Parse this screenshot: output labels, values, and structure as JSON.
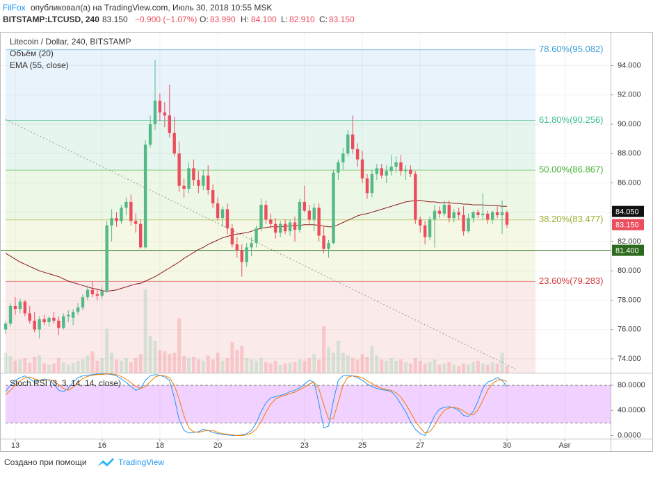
{
  "header": {
    "author": "FilFox",
    "published": "опубликовал(а) на TradingView.com, Июль 30, 2018 10:55 MSK",
    "symbol": "BITSTAMP:LTCUSD, 240",
    "last": "83.150",
    "change": "−0.900 (−1.07%)",
    "o_label": "O:",
    "o": "83.990",
    "h_label": "H:",
    "h": "84.100",
    "l_label": "L:",
    "l": "82.910",
    "c_label": "C:",
    "c": "83.150"
  },
  "footer": {
    "text": "Создано при помощи",
    "brand": "TradingView"
  },
  "chart_data": {
    "type": "candlestick",
    "title": "Litecoin / Dollar, 240, BITSTAMP",
    "volume_label": "Объём (20)",
    "ema_label": "EMA (55, close)",
    "up_color": "#53b987",
    "down_color": "#eb4d5c",
    "ema_color": "#8b1a1a",
    "grid": true,
    "ylim": [
      73.05,
      96.2
    ],
    "yticks": [
      {
        "value": 74,
        "label": "74.000"
      },
      {
        "value": 76,
        "label": "76.000"
      },
      {
        "value": 78,
        "label": "78.000"
      },
      {
        "value": 80,
        "label": "80.000"
      },
      {
        "value": 82,
        "label": "82.000"
      },
      {
        "value": 84,
        "label": "84.000"
      },
      {
        "value": 86,
        "label": "86.000"
      },
      {
        "value": 88,
        "label": "88.000"
      },
      {
        "value": 90,
        "label": "90.000"
      },
      {
        "value": 92,
        "label": "92.000"
      },
      {
        "value": 94,
        "label": "94.000"
      }
    ],
    "xlim": [
      -1.17,
      125.5
    ],
    "xticks": [
      {
        "value": 2,
        "label": "13"
      },
      {
        "value": 20,
        "label": "16"
      },
      {
        "value": 32,
        "label": "18"
      },
      {
        "value": 44,
        "label": "20"
      },
      {
        "value": 62,
        "label": "23"
      },
      {
        "value": 74,
        "label": "25"
      },
      {
        "value": 86,
        "label": "27"
      },
      {
        "value": 104,
        "label": "30"
      },
      {
        "value": 116,
        "label": "Авг"
      }
    ],
    "fib_levels": [
      {
        "value": 95.082,
        "label": "78.60%(95.082)",
        "color": "#3a9fd6",
        "fill": "#e8f3fb"
      },
      {
        "value": 90.256,
        "label": "61.80%(90.256)",
        "color": "#3dbd8f",
        "fill": "#e6f6ef"
      },
      {
        "value": 86.867,
        "label": "50.00%(86.867)",
        "color": "#45b035",
        "fill": "#edf7e6"
      },
      {
        "value": 83.477,
        "label": "38.20%(83.477)",
        "color": "#9aae2c",
        "fill": "#f4f8e4"
      },
      {
        "value": 79.283,
        "label": "23.60%(79.283)",
        "color": "#d33b3b",
        "fill": "#fbeaea"
      }
    ],
    "hline": {
      "value": 81.4,
      "label": "81.400",
      "color": "#2e6a1e"
    },
    "ema_price": {
      "value": 84.05,
      "label": "84.050"
    },
    "last_price": {
      "value": 83.15,
      "label": "83.150"
    },
    "candles": [
      [
        76.0,
        76.6,
        75.7,
        76.4
      ],
      [
        76.4,
        77.8,
        76.2,
        77.6
      ],
      [
        77.6,
        78.2,
        77.0,
        77.4
      ],
      [
        77.4,
        78.1,
        77.1,
        77.9
      ],
      [
        77.9,
        78.0,
        76.9,
        77.1
      ],
      [
        77.1,
        77.6,
        76.4,
        76.6
      ],
      [
        76.6,
        77.2,
        75.8,
        76.0
      ],
      [
        76.0,
        76.9,
        75.4,
        76.7
      ],
      [
        76.7,
        77.0,
        76.3,
        76.5
      ],
      [
        76.5,
        76.9,
        76.2,
        76.8
      ],
      [
        76.8,
        77.2,
        76.4,
        76.6
      ],
      [
        76.6,
        76.9,
        75.6,
        76.1
      ],
      [
        76.1,
        77.1,
        76.0,
        76.9
      ],
      [
        76.9,
        77.3,
        76.5,
        77.0
      ],
      [
        76.8,
        77.4,
        76.3,
        77.2
      ],
      [
        77.2,
        77.8,
        77.0,
        77.5
      ],
      [
        77.5,
        78.4,
        77.3,
        78.2
      ],
      [
        78.2,
        79.0,
        78.0,
        78.7
      ],
      [
        78.7,
        79.3,
        78.2,
        78.4
      ],
      [
        78.4,
        78.8,
        78.0,
        78.3
      ],
      [
        78.3,
        78.9,
        78.1,
        78.6
      ],
      [
        78.6,
        83.4,
        78.5,
        83.1
      ],
      [
        83.1,
        84.2,
        82.0,
        83.6
      ],
      [
        83.6,
        84.0,
        83.0,
        83.4
      ],
      [
        83.4,
        84.5,
        83.2,
        84.3
      ],
      [
        84.3,
        85.0,
        83.8,
        84.7
      ],
      [
        84.7,
        85.2,
        83.1,
        83.4
      ],
      [
        83.4,
        83.9,
        82.6,
        83.2
      ],
      [
        83.2,
        83.5,
        81.5,
        81.6
      ],
      [
        81.6,
        88.9,
        81.5,
        88.6
      ],
      [
        88.6,
        90.6,
        88.4,
        90.0
      ],
      [
        90.0,
        94.4,
        89.6,
        91.6
      ],
      [
        91.6,
        92.1,
        90.2,
        90.8
      ],
      [
        90.8,
        91.5,
        89.8,
        90.6
      ],
      [
        90.6,
        92.7,
        89.1,
        89.4
      ],
      [
        89.4,
        90.5,
        87.8,
        88.0
      ],
      [
        88.0,
        88.8,
        85.4,
        85.8
      ],
      [
        85.8,
        86.3,
        85.0,
        85.6
      ],
      [
        85.6,
        87.4,
        85.3,
        87.0
      ],
      [
        87.0,
        87.6,
        85.8,
        86.2
      ],
      [
        86.2,
        86.8,
        85.3,
        85.8
      ],
      [
        85.8,
        86.9,
        85.5,
        86.5
      ],
      [
        86.5,
        87.2,
        85.2,
        85.5
      ],
      [
        85.5,
        85.9,
        84.3,
        84.6
      ],
      [
        84.6,
        85.0,
        83.4,
        83.6
      ],
      [
        83.6,
        84.4,
        83.0,
        84.2
      ],
      [
        84.2,
        84.6,
        82.5,
        82.9
      ],
      [
        82.9,
        83.2,
        81.6,
        81.8
      ],
      [
        81.8,
        82.3,
        80.9,
        81.4
      ],
      [
        81.4,
        81.8,
        79.6,
        80.6
      ],
      [
        80.6,
        81.9,
        80.3,
        81.6
      ],
      [
        81.6,
        82.3,
        81.0,
        81.9
      ],
      [
        81.9,
        83.1,
        81.6,
        82.9
      ],
      [
        82.9,
        84.9,
        82.7,
        84.5
      ],
      [
        84.5,
        84.8,
        83.2,
        83.5
      ],
      [
        83.5,
        83.9,
        82.9,
        83.2
      ],
      [
        83.2,
        83.6,
        82.2,
        82.6
      ],
      [
        82.6,
        83.4,
        82.3,
        83.2
      ],
      [
        83.2,
        83.5,
        82.5,
        82.7
      ],
      [
        82.7,
        83.5,
        82.4,
        83.3
      ],
      [
        83.3,
        83.7,
        82.0,
        82.8
      ],
      [
        82.8,
        84.9,
        82.6,
        84.7
      ],
      [
        84.7,
        85.8,
        84.0,
        84.1
      ],
      [
        84.1,
        84.5,
        83.2,
        83.5
      ],
      [
        83.5,
        84.6,
        82.7,
        84.3
      ],
      [
        84.3,
        84.6,
        82.0,
        82.4
      ],
      [
        82.4,
        83.0,
        81.2,
        81.5
      ],
      [
        81.5,
        82.1,
        80.9,
        81.9
      ],
      [
        81.9,
        86.9,
        81.8,
        86.7
      ],
      [
        86.7,
        87.6,
        86.2,
        87.4
      ],
      [
        87.4,
        88.4,
        86.9,
        88.0
      ],
      [
        88.0,
        89.6,
        87.8,
        89.3
      ],
      [
        89.3,
        90.6,
        88.0,
        88.3
      ],
      [
        88.3,
        88.7,
        87.1,
        87.6
      ],
      [
        87.6,
        88.2,
        86.0,
        86.3
      ],
      [
        86.3,
        86.6,
        84.9,
        85.3
      ],
      [
        85.3,
        86.9,
        85.0,
        86.6
      ],
      [
        86.6,
        87.3,
        86.2,
        87.0
      ],
      [
        87.0,
        87.3,
        86.3,
        86.5
      ],
      [
        86.5,
        87.2,
        86.0,
        86.8
      ],
      [
        86.8,
        87.9,
        86.5,
        87.1
      ],
      [
        87.1,
        87.8,
        86.7,
        87.4
      ],
      [
        87.4,
        87.9,
        86.5,
        86.8
      ],
      [
        86.8,
        87.2,
        86.2,
        86.9
      ],
      [
        86.9,
        87.2,
        86.4,
        86.6
      ],
      [
        86.6,
        86.8,
        83.2,
        83.5
      ],
      [
        83.5,
        83.7,
        82.6,
        83.1
      ],
      [
        83.1,
        83.4,
        81.8,
        82.3
      ],
      [
        82.3,
        83.7,
        82.1,
        83.5
      ],
      [
        83.5,
        84.5,
        81.6,
        84.1
      ],
      [
        84.1,
        84.4,
        83.6,
        83.9
      ],
      [
        83.9,
        84.8,
        83.7,
        84.5
      ],
      [
        84.5,
        84.8,
        83.3,
        83.6
      ],
      [
        83.6,
        84.2,
        83.3,
        84.0
      ],
      [
        84.0,
        84.3,
        83.5,
        83.8
      ],
      [
        83.8,
        84.4,
        82.4,
        82.7
      ],
      [
        82.7,
        83.9,
        82.6,
        83.6
      ],
      [
        83.6,
        84.1,
        83.3,
        84.0
      ],
      [
        84.0,
        84.2,
        83.6,
        83.8
      ],
      [
        83.8,
        85.3,
        83.5,
        83.9
      ],
      [
        83.9,
        84.1,
        83.2,
        83.5
      ],
      [
        83.5,
        84.1,
        83.2,
        84.0
      ],
      [
        84.0,
        84.4,
        83.6,
        83.8
      ],
      [
        83.8,
        84.8,
        82.5,
        84.0
      ],
      [
        83.99,
        84.1,
        82.91,
        83.15
      ]
    ],
    "volume": [
      30,
      25,
      18,
      20,
      22,
      15,
      24,
      26,
      14,
      12,
      14,
      22,
      16,
      12,
      15,
      18,
      20,
      26,
      32,
      18,
      22,
      66,
      30,
      20,
      18,
      22,
      16,
      22,
      28,
      125,
      55,
      48,
      34,
      32,
      28,
      30,
      82,
      25,
      22,
      24,
      20,
      18,
      26,
      20,
      30,
      18,
      22,
      46,
      34,
      40,
      22,
      20,
      18,
      22,
      16,
      14,
      18,
      12,
      14,
      15,
      16,
      20,
      18,
      22,
      28,
      20,
      70,
      38,
      30,
      48,
      30,
      26,
      22,
      20,
      28,
      24,
      40,
      26,
      20,
      18,
      22,
      18,
      20,
      16,
      14,
      22,
      18,
      14,
      16,
      20,
      12,
      14,
      16,
      12,
      10,
      14,
      12,
      16,
      18,
      14,
      12,
      16,
      14,
      30,
      10
    ],
    "ema": [
      81.2,
      81.0,
      80.8,
      80.6,
      80.45,
      80.3,
      80.15,
      80.0,
      79.9,
      79.8,
      79.7,
      79.6,
      79.45,
      79.3,
      79.2,
      79.1,
      79.0,
      78.9,
      78.8,
      78.75,
      78.65,
      78.6,
      78.65,
      78.7,
      78.8,
      78.9,
      79.0,
      79.1,
      79.15,
      79.3,
      79.45,
      79.6,
      79.8,
      80.0,
      80.2,
      80.4,
      80.6,
      80.85,
      81.05,
      81.25,
      81.45,
      81.6,
      81.8,
      81.95,
      82.1,
      82.25,
      82.35,
      82.45,
      82.5,
      82.55,
      82.6,
      82.7,
      82.8,
      82.9,
      82.95,
      83.0,
      83.0,
      83.0,
      83.05,
      83.05,
      83.1,
      83.1,
      83.15,
      83.15,
      83.15,
      83.1,
      83.05,
      83.0,
      83.0,
      83.15,
      83.3,
      83.45,
      83.6,
      83.75,
      83.85,
      83.9,
      84.0,
      84.1,
      84.2,
      84.3,
      84.4,
      84.5,
      84.6,
      84.7,
      84.75,
      84.8,
      84.8,
      84.75,
      84.7,
      84.7,
      84.65,
      84.65,
      84.65,
      84.6,
      84.6,
      84.55,
      84.55,
      84.5,
      84.5,
      84.5,
      84.45,
      84.45,
      84.45,
      84.4,
      84.4
    ],
    "stoch": {
      "label": "Stoch RSI (3, 3, 14, 14, close)",
      "ylim": [
        -5,
        100
      ],
      "yticks": [
        {
          "value": 0,
          "label": "0.0000"
        },
        {
          "value": 40,
          "label": "40.0000"
        },
        {
          "value": 80,
          "label": "80.0000"
        }
      ],
      "band": [
        20,
        80
      ],
      "series": [
        {
          "name": "K",
          "color": "#2196f3",
          "values": [
            70,
            80,
            88,
            92,
            95,
            90,
            85,
            88,
            90,
            88,
            82,
            72,
            70,
            75,
            85,
            92,
            95,
            96,
            97,
            98,
            98,
            98,
            97,
            95,
            90,
            85,
            78,
            72,
            75,
            88,
            95,
            97,
            96,
            93,
            88,
            60,
            25,
            8,
            4,
            5,
            6,
            10,
            8,
            5,
            3,
            2,
            1,
            0,
            0,
            1,
            3,
            8,
            20,
            38,
            52,
            60,
            62,
            64,
            66,
            70,
            72,
            76,
            82,
            88,
            85,
            50,
            12,
            15,
            55,
            88,
            95,
            96,
            95,
            92,
            88,
            82,
            78,
            75,
            73,
            72,
            70,
            62,
            50,
            38,
            22,
            10,
            3,
            0,
            15,
            32,
            42,
            45,
            46,
            44,
            40,
            32,
            30,
            38,
            55,
            75,
            85,
            88,
            92,
            88,
            78
          ]
        },
        {
          "name": "D",
          "color": "#f57c00",
          "values": [
            65,
            72,
            80,
            87,
            92,
            93,
            90,
            88,
            88,
            89,
            87,
            81,
            75,
            72,
            77,
            84,
            91,
            94,
            96,
            97,
            97,
            98,
            98,
            97,
            94,
            90,
            84,
            78,
            75,
            78,
            86,
            93,
            96,
            95,
            92,
            80,
            58,
            31,
            12,
            6,
            5,
            7,
            8,
            8,
            5,
            3,
            2,
            1,
            0,
            0,
            1,
            4,
            10,
            22,
            37,
            50,
            58,
            62,
            64,
            67,
            69,
            73,
            77,
            82,
            85,
            74,
            49,
            26,
            27,
            53,
            80,
            93,
            95,
            94,
            92,
            87,
            83,
            78,
            75,
            73,
            72,
            68,
            61,
            50,
            37,
            23,
            12,
            4,
            6,
            16,
            30,
            40,
            44,
            45,
            43,
            39,
            34,
            33,
            41,
            56,
            72,
            83,
            88,
            89,
            86
          ]
        }
      ]
    }
  }
}
